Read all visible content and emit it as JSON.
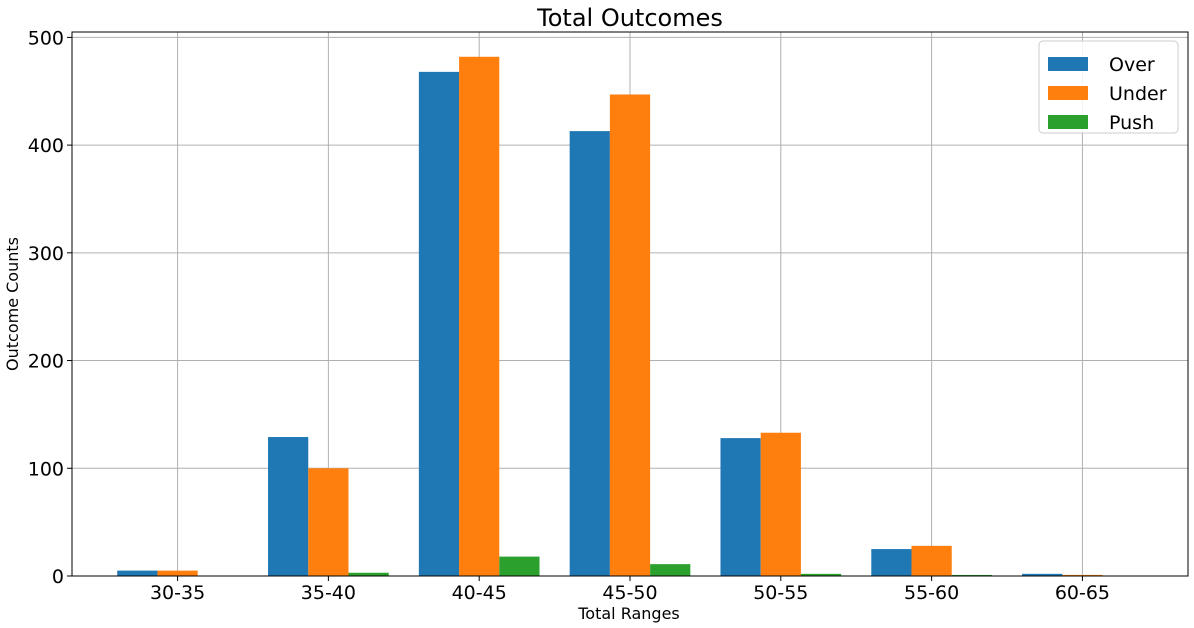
{
  "chart_data": {
    "type": "bar",
    "title": "Total Outcomes",
    "xlabel": "Total Ranges",
    "ylabel": "Outcome Counts",
    "categories": [
      "30-35",
      "35-40",
      "40-45",
      "45-50",
      "50-55",
      "55-60",
      "60-65"
    ],
    "series": [
      {
        "name": "Over",
        "color": "#1f77b4",
        "values": [
          5,
          129,
          468,
          413,
          128,
          25,
          2
        ]
      },
      {
        "name": "Under",
        "color": "#ff7f0e",
        "values": [
          5,
          100,
          482,
          447,
          133,
          28,
          1
        ]
      },
      {
        "name": "Push",
        "color": "#2ca02c",
        "values": [
          0,
          3,
          18,
          11,
          2,
          1,
          0
        ]
      }
    ],
    "ylim": [
      0,
      505
    ],
    "yticks": [
      0,
      100,
      200,
      300,
      400,
      500
    ],
    "grid": true,
    "legend_position": "top-right"
  }
}
